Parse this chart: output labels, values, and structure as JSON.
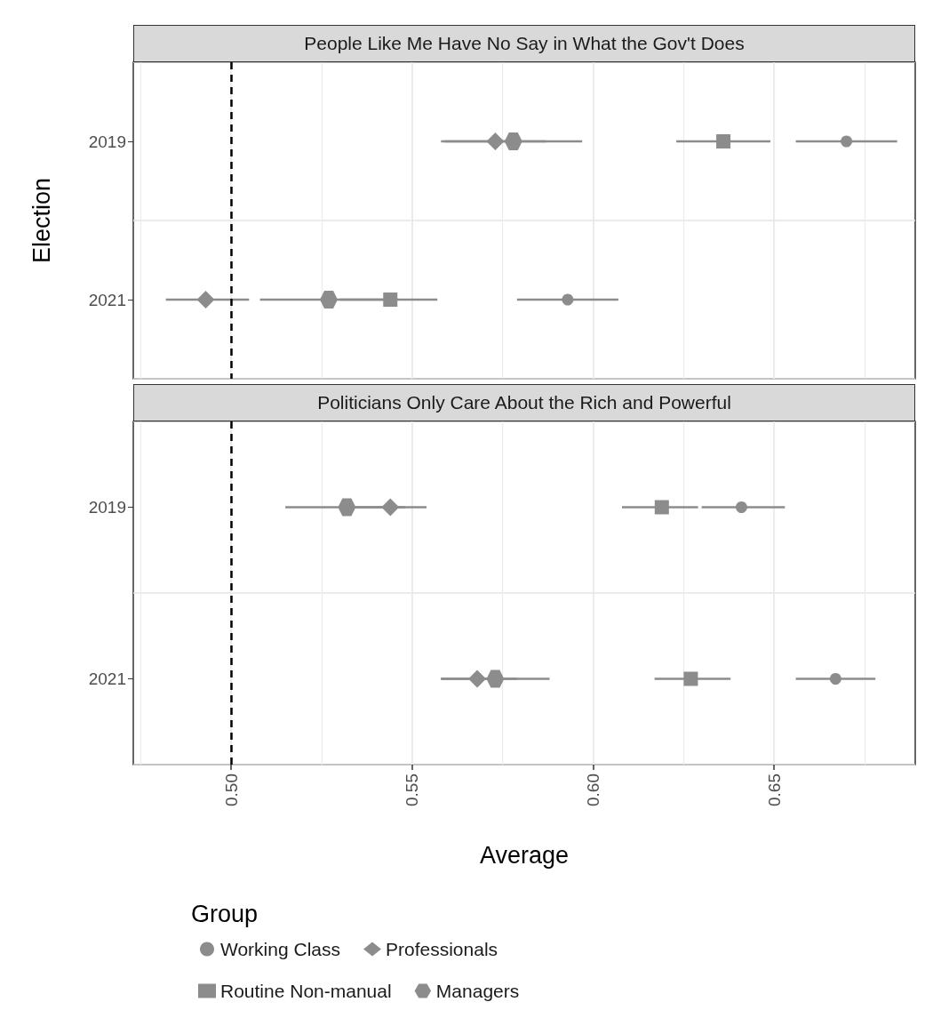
{
  "chart_data": [
    {
      "type": "scatter",
      "orientation": "horizontal",
      "title": "People Like Me Have No Say in What the Gov't Does",
      "ylabel": "Election",
      "categories": [
        "2019",
        "2021"
      ],
      "series": [
        {
          "color": "#8c8c8c",
          "marker": "circle",
          "values": [
            0.67,
            0.593
          ],
          "errors": [
            [
              0.656,
              0.684
            ],
            [
              0.579,
              0.607
            ]
          ]
        },
        {
          "color": "#8c8c8c",
          "marker": "diamond",
          "values": [
            0.573,
            0.493
          ],
          "errors": [
            [
              0.558,
              0.587
            ],
            [
              0.482,
              0.505
            ]
          ]
        },
        {
          "color": "#8c8c8c",
          "marker": "square",
          "values": [
            0.636,
            0.544
          ],
          "errors": [
            [
              0.623,
              0.649
            ],
            [
              0.53,
              0.557
            ]
          ]
        },
        {
          "color": "#8c8c8c",
          "values": [
            0.578,
            0.527
          ],
          "errors": [
            [
              0.559,
              0.597
            ],
            [
              0.508,
              0.546
            ]
          ]
        }
      ],
      "xlim": [
        0.473,
        0.689
      ],
      "xticks": [
        {
          "value": 0.475,
          "label": null
        },
        0.5,
        {
          "value": 0.525,
          "label": null
        },
        0.55,
        {
          "value": 0.575,
          "label": null
        },
        0.6,
        {
          "value": 0.625,
          "label": null
        },
        0.65,
        {
          "value": 0.675,
          "label": null
        }
      ],
      "ref_lines": [
        {
          "axis": "x",
          "value": 0.5,
          "color": "#000000",
          "line_style": "dashed"
        }
      ],
      "grid": true,
      "tick_labels": "y",
      "legend": false
    },
    {
      "type": "scatter",
      "orientation": "horizontal",
      "title": "Politicians Only Care About the Rich and Powerful",
      "xlabel": "Average",
      "legend_title": "Group",
      "categories": [
        "2019",
        "2021"
      ],
      "series": [
        {
          "name": "Working Class",
          "color": "#8c8c8c",
          "marker": "circle",
          "values": [
            0.641,
            0.667
          ],
          "errors": [
            [
              0.63,
              0.653
            ],
            [
              0.656,
              0.678
            ]
          ]
        },
        {
          "name": "Professionals",
          "color": "#8c8c8c",
          "marker": "diamond",
          "values": [
            0.544,
            0.568
          ],
          "errors": [
            [
              0.534,
              0.554
            ],
            [
              0.558,
              0.579
            ]
          ]
        },
        {
          "name": "Routine Non-manual",
          "color": "#8c8c8c",
          "marker": "square",
          "values": [
            0.619,
            0.627
          ],
          "errors": [
            [
              0.608,
              0.629
            ],
            [
              0.617,
              0.638
            ]
          ]
        },
        {
          "name": "Managers",
          "color": "#8c8c8c",
          "values": [
            0.532,
            0.573
          ],
          "errors": [
            [
              0.515,
              0.548
            ],
            [
              0.558,
              0.588
            ]
          ]
        }
      ],
      "xlim": [
        0.473,
        0.689
      ],
      "xticks": [
        {
          "value": 0.475,
          "label": null
        },
        {
          "value": 0.5,
          "label": "0.50"
        },
        {
          "value": 0.525,
          "label": null
        },
        {
          "value": 0.55,
          "label": "0.55"
        },
        {
          "value": 0.575,
          "label": null
        },
        {
          "value": 0.6,
          "label": "0.60"
        },
        {
          "value": 0.625,
          "label": null
        },
        {
          "value": 0.65,
          "label": "0.65"
        },
        {
          "value": 0.675,
          "label": null
        }
      ],
      "ref_lines": [
        {
          "axis": "x",
          "value": 0.5,
          "color": "#000000",
          "line_style": "dashed"
        }
      ],
      "grid": true,
      "legend": "bottom"
    }
  ]
}
